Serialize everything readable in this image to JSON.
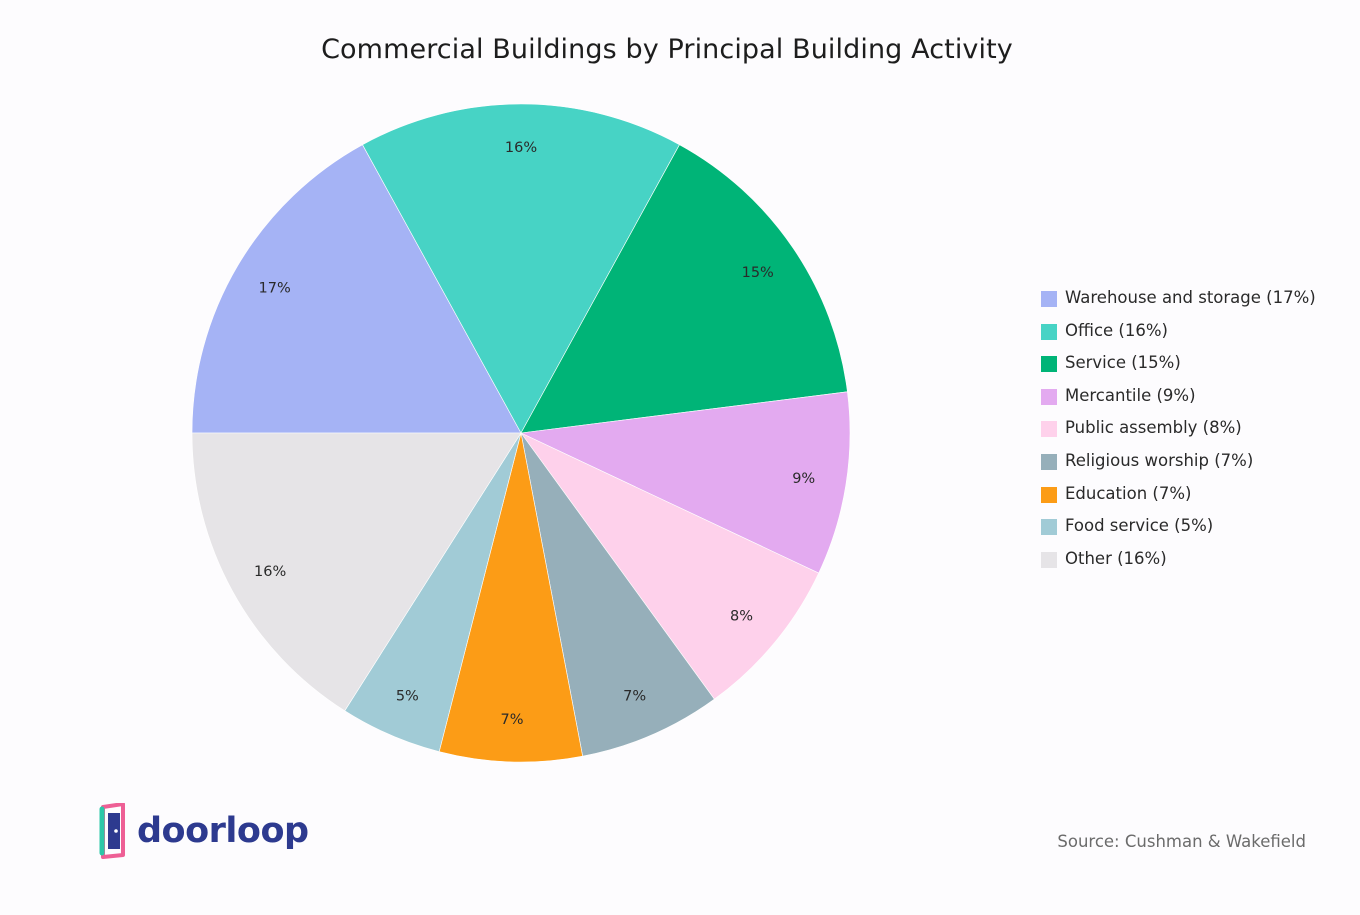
{
  "chart_data": {
    "type": "pie",
    "title": "Commercial Buildings by Principal Building Activity",
    "start_angle_deg": -180,
    "direction": "clockwise",
    "slices": [
      {
        "label": "Warehouse and storage (17%)",
        "value": 17,
        "display": "17%",
        "color": "#a5b3f5"
      },
      {
        "label": "Office (16%)",
        "value": 16,
        "display": "16%",
        "color": "#47d3c5"
      },
      {
        "label": "Service (15%)",
        "value": 15,
        "display": "15%",
        "color": "#00b477"
      },
      {
        "label": "Mercantile (9%)",
        "value": 9,
        "display": "9%",
        "color": "#e3aaf0"
      },
      {
        "label": "Public assembly (8%)",
        "value": 8,
        "display": "8%",
        "color": "#fed1eb"
      },
      {
        "label": "Religious worship (7%)",
        "value": 7,
        "display": "7%",
        "color": "#96afba"
      },
      {
        "label": "Education (7%)",
        "value": 7,
        "display": "7%",
        "color": "#fc9c16"
      },
      {
        "label": "Food service (5%)",
        "value": 5,
        "display": "5%",
        "color": "#a1cbd6"
      },
      {
        "label": "Other (16%)",
        "value": 16,
        "display": "16%",
        "color": "#e6e4e7"
      }
    ],
    "legend_position": "right"
  },
  "source": "Source: Cushman & Wakefield",
  "brand": {
    "name": "doorloop",
    "icon": "door-icon",
    "color": "#2d3a8f"
  }
}
